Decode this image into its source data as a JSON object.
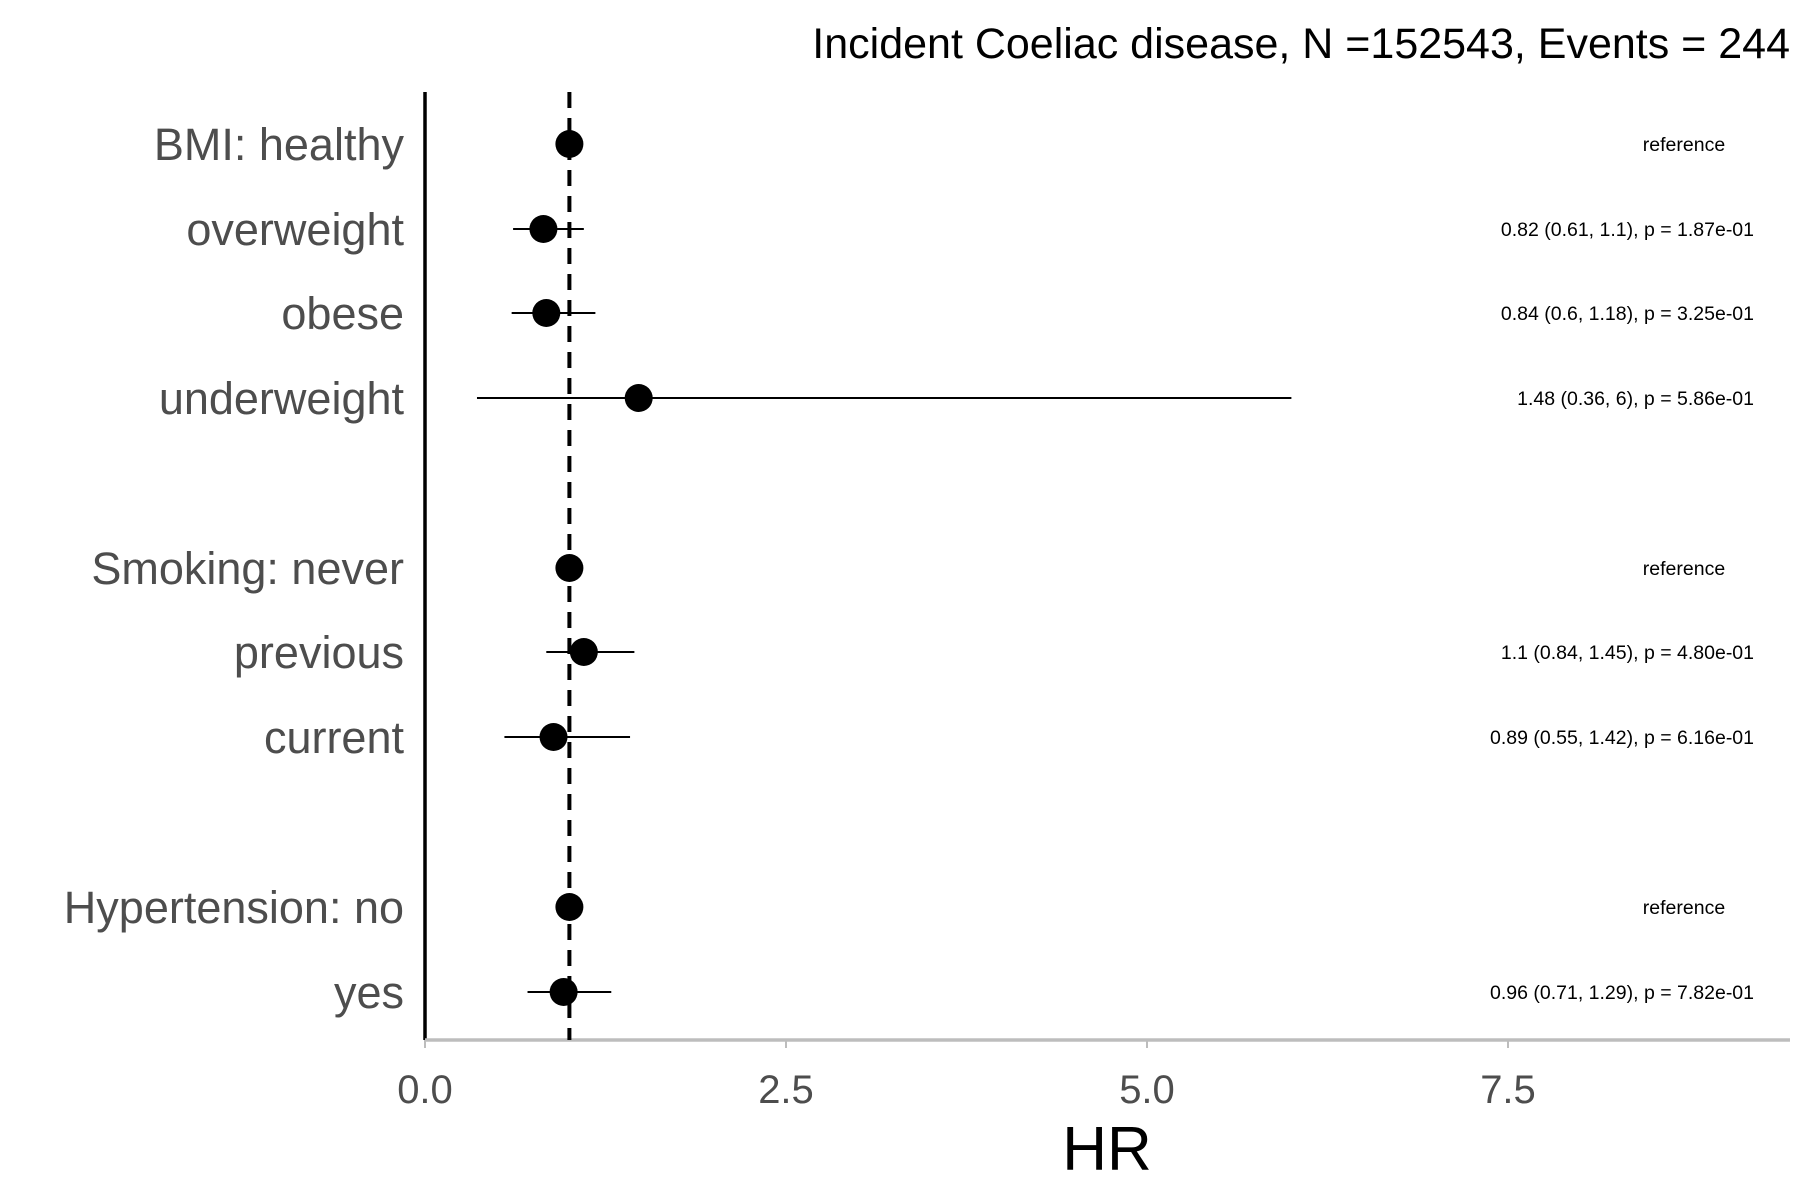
{
  "chart_data": {
    "type": "forest",
    "title": "Incident Coeliac disease, N =152543, Events = 244",
    "xlabel": "HR",
    "xlim": [
      0,
      9.4
    ],
    "xticks": [
      {
        "value": 0,
        "label": "0.0"
      },
      {
        "value": 2.5,
        "label": "2.5"
      },
      {
        "value": 5,
        "label": "5.0"
      },
      {
        "value": 7.5,
        "label": "7.5"
      }
    ],
    "reference_line": 1,
    "rows": [
      {
        "label": "BMI: healthy",
        "hr": 1.0,
        "lower": null,
        "upper": null,
        "text": "reference"
      },
      {
        "label": "overweight",
        "hr": 0.82,
        "lower": 0.61,
        "upper": 1.1,
        "text": "0.82 (0.61, 1.1), p = 1.87e-01"
      },
      {
        "label": "obese",
        "hr": 0.84,
        "lower": 0.6,
        "upper": 1.18,
        "text": "0.84 (0.6, 1.18), p = 3.25e-01"
      },
      {
        "label": "underweight",
        "hr": 1.48,
        "lower": 0.36,
        "upper": 6,
        "text": "1.48 (0.36, 6), p = 5.86e-01"
      },
      {
        "label": "Smoking: never",
        "hr": 1.0,
        "lower": null,
        "upper": null,
        "text": "reference"
      },
      {
        "label": "previous",
        "hr": 1.1,
        "lower": 0.84,
        "upper": 1.45,
        "text": "1.1 (0.84, 1.45), p = 4.80e-01"
      },
      {
        "label": "current",
        "hr": 0.89,
        "lower": 0.55,
        "upper": 1.42,
        "text": "0.89 (0.55, 1.42), p = 6.16e-01"
      },
      {
        "label": "Hypertension: no",
        "hr": 1.0,
        "lower": null,
        "upper": null,
        "text": "reference"
      },
      {
        "label": "yes",
        "hr": 0.96,
        "lower": 0.71,
        "upper": 1.29,
        "text": "0.96 (0.71, 1.29), p = 7.82e-01"
      }
    ]
  }
}
